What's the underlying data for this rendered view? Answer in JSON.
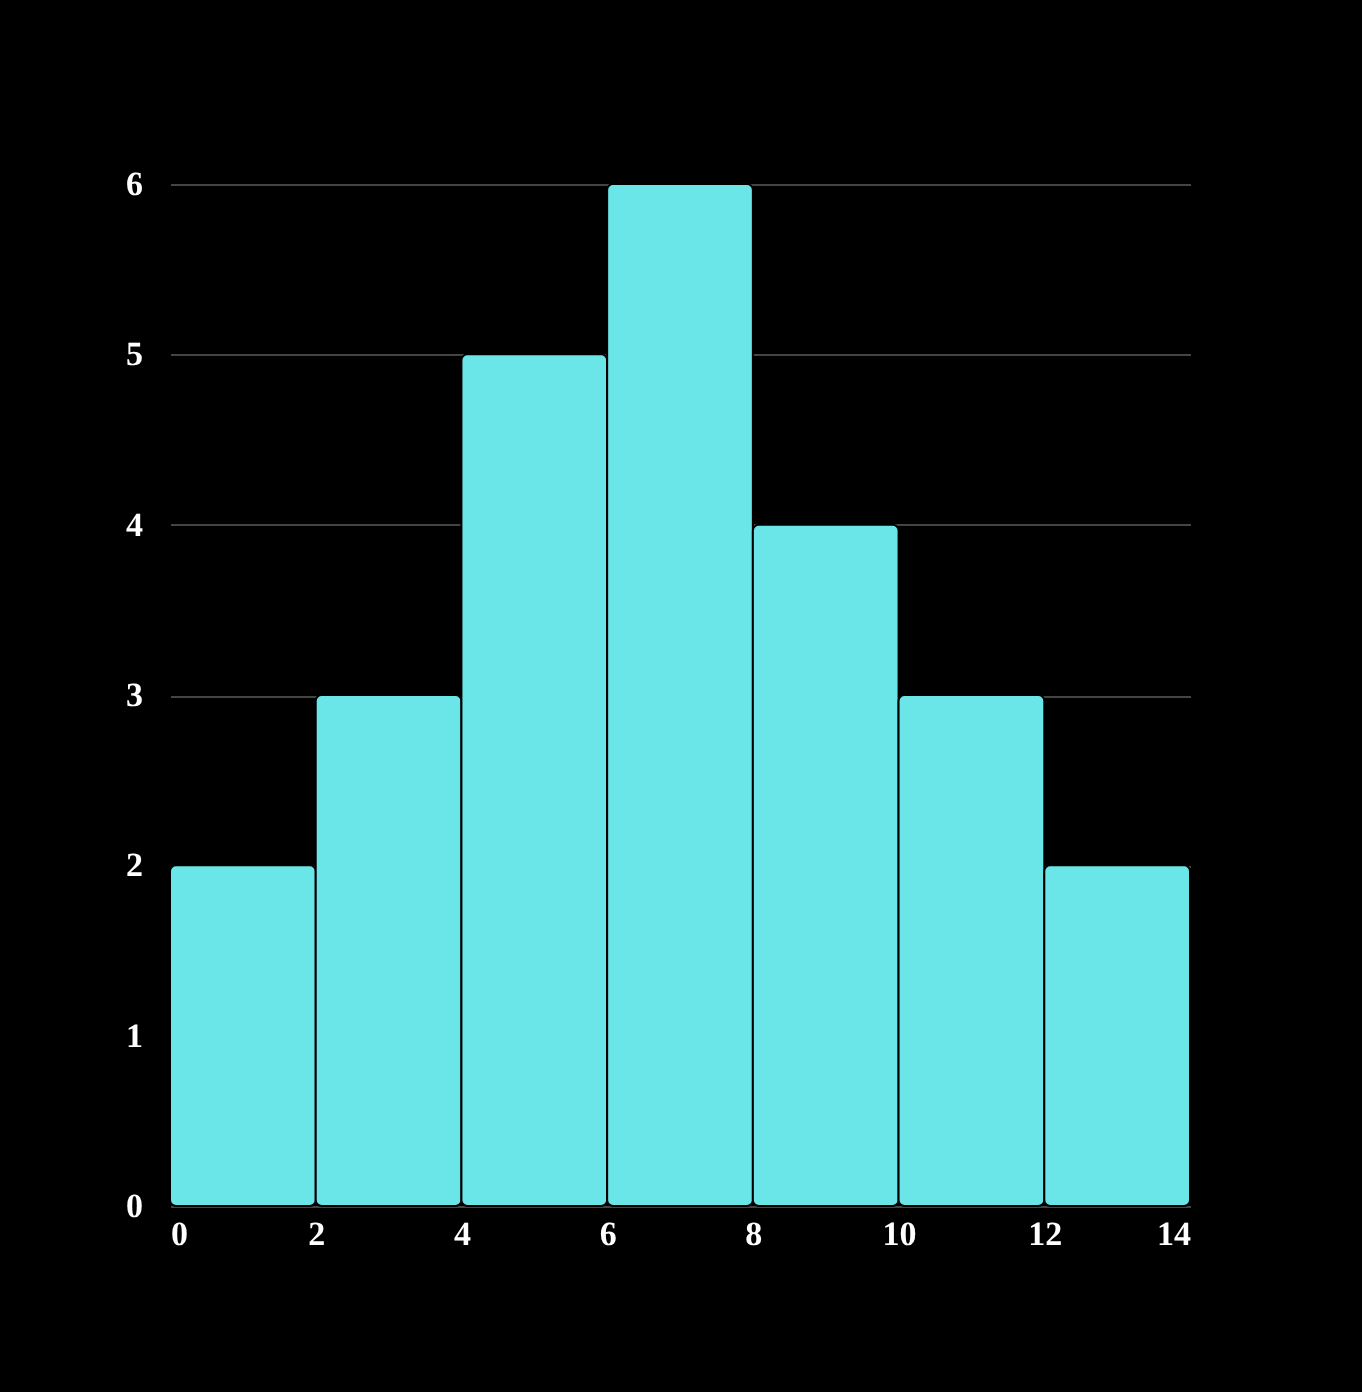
{
  "chart_data": {
    "type": "histogram",
    "bins": [
      0,
      2,
      4,
      6,
      8,
      10,
      12,
      14
    ],
    "values": [
      2,
      3,
      5,
      6,
      4,
      3,
      2
    ],
    "color": "#6ae6e8",
    "xlim": [
      0,
      14
    ],
    "xticks": [
      0,
      2,
      4,
      6,
      8,
      10,
      12,
      14
    ],
    "ylim": [
      0,
      6
    ],
    "yticks": [
      0,
      1,
      2,
      3,
      4,
      5,
      6
    ],
    "grid": "y"
  }
}
